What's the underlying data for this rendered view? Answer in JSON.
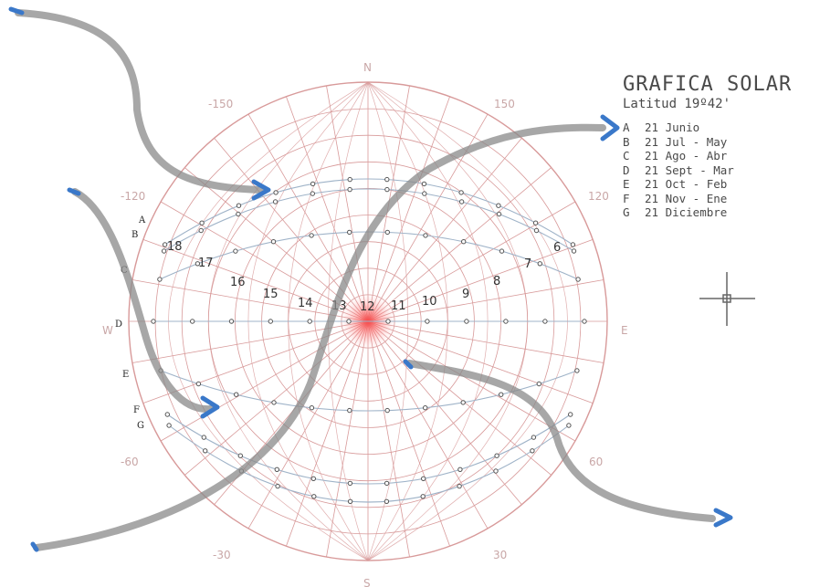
{
  "legend": {
    "title": "GRAFICA SOLAR",
    "subtitle": "Latitud 19º42'",
    "items": [
      {
        "key": "A",
        "label": "21 Junio"
      },
      {
        "key": "B",
        "label": "21 Jul - May"
      },
      {
        "key": "C",
        "label": "21 Ago - Abr"
      },
      {
        "key": "D",
        "label": "21 Sept - Mar"
      },
      {
        "key": "E",
        "label": "21 Oct - Feb"
      },
      {
        "key": "F",
        "label": "21 Nov - Ene"
      },
      {
        "key": "G",
        "label": "21 Diciembre"
      }
    ]
  },
  "compass": {
    "north": "N",
    "south": "S",
    "east": "E",
    "west": "W"
  },
  "azimuth_labels": [
    {
      "text": "-150",
      "angle": -150
    },
    {
      "text": "150",
      "angle": 150
    },
    {
      "text": "-120",
      "angle": -120
    },
    {
      "text": "120",
      "angle": 120
    },
    {
      "text": "-60",
      "angle": -60
    },
    {
      "text": "60",
      "angle": 60
    },
    {
      "text": "-30",
      "angle": -30
    },
    {
      "text": "30",
      "angle": 30
    }
  ],
  "hour_labels": [
    "18",
    "17",
    "16",
    "15",
    "14",
    "13",
    "12",
    "11",
    "10",
    "9",
    "8",
    "7",
    "6"
  ],
  "curve_labels": [
    "A",
    "B",
    "C",
    "D",
    "E",
    "F",
    "G"
  ],
  "colors": {
    "grid": "#d89a9a",
    "center_glow": "#ff4a4a",
    "curve": "#9fb3c8",
    "marker": "#555555",
    "arrow_line": "#8c8c8c",
    "arrow_head": "#3a78c9"
  },
  "icons": [
    "crosshair-icon",
    "arrow-icon"
  ]
}
